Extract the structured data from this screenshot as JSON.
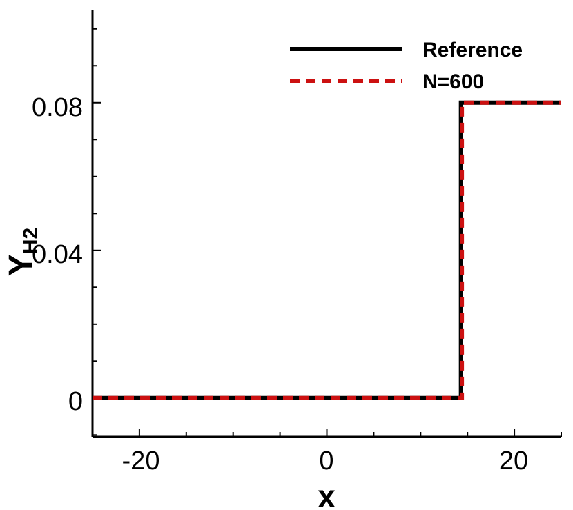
{
  "chart_data": {
    "type": "line",
    "xlabel": "x",
    "ylabel": {
      "main": "Y",
      "subscript": "H2"
    },
    "xlim": [
      -25,
      25
    ],
    "ylim": [
      -0.0105,
      0.105
    ],
    "x_ticks": [
      -20,
      0,
      20
    ],
    "x_tick_labels": [
      "-20",
      "0",
      "20"
    ],
    "x_minor_step": 5,
    "y_ticks": [
      0,
      0.04,
      0.08
    ],
    "y_tick_labels": [
      "0",
      "0.04",
      "0.08"
    ],
    "y_minor_step": 0.01,
    "grid": false,
    "legend_position": "top-right",
    "series": [
      {
        "name": "Reference",
        "color": "#000000",
        "style": "solid",
        "x": [
          -25,
          14.3,
          14.3,
          25
        ],
        "y": [
          0,
          0,
          0.08,
          0.08
        ]
      },
      {
        "name": "N=600",
        "color": "#cc1111",
        "style": "dashed",
        "x": [
          -25,
          14.4,
          14.4,
          25
        ],
        "y": [
          0,
          0,
          0.08,
          0.08
        ]
      }
    ]
  }
}
